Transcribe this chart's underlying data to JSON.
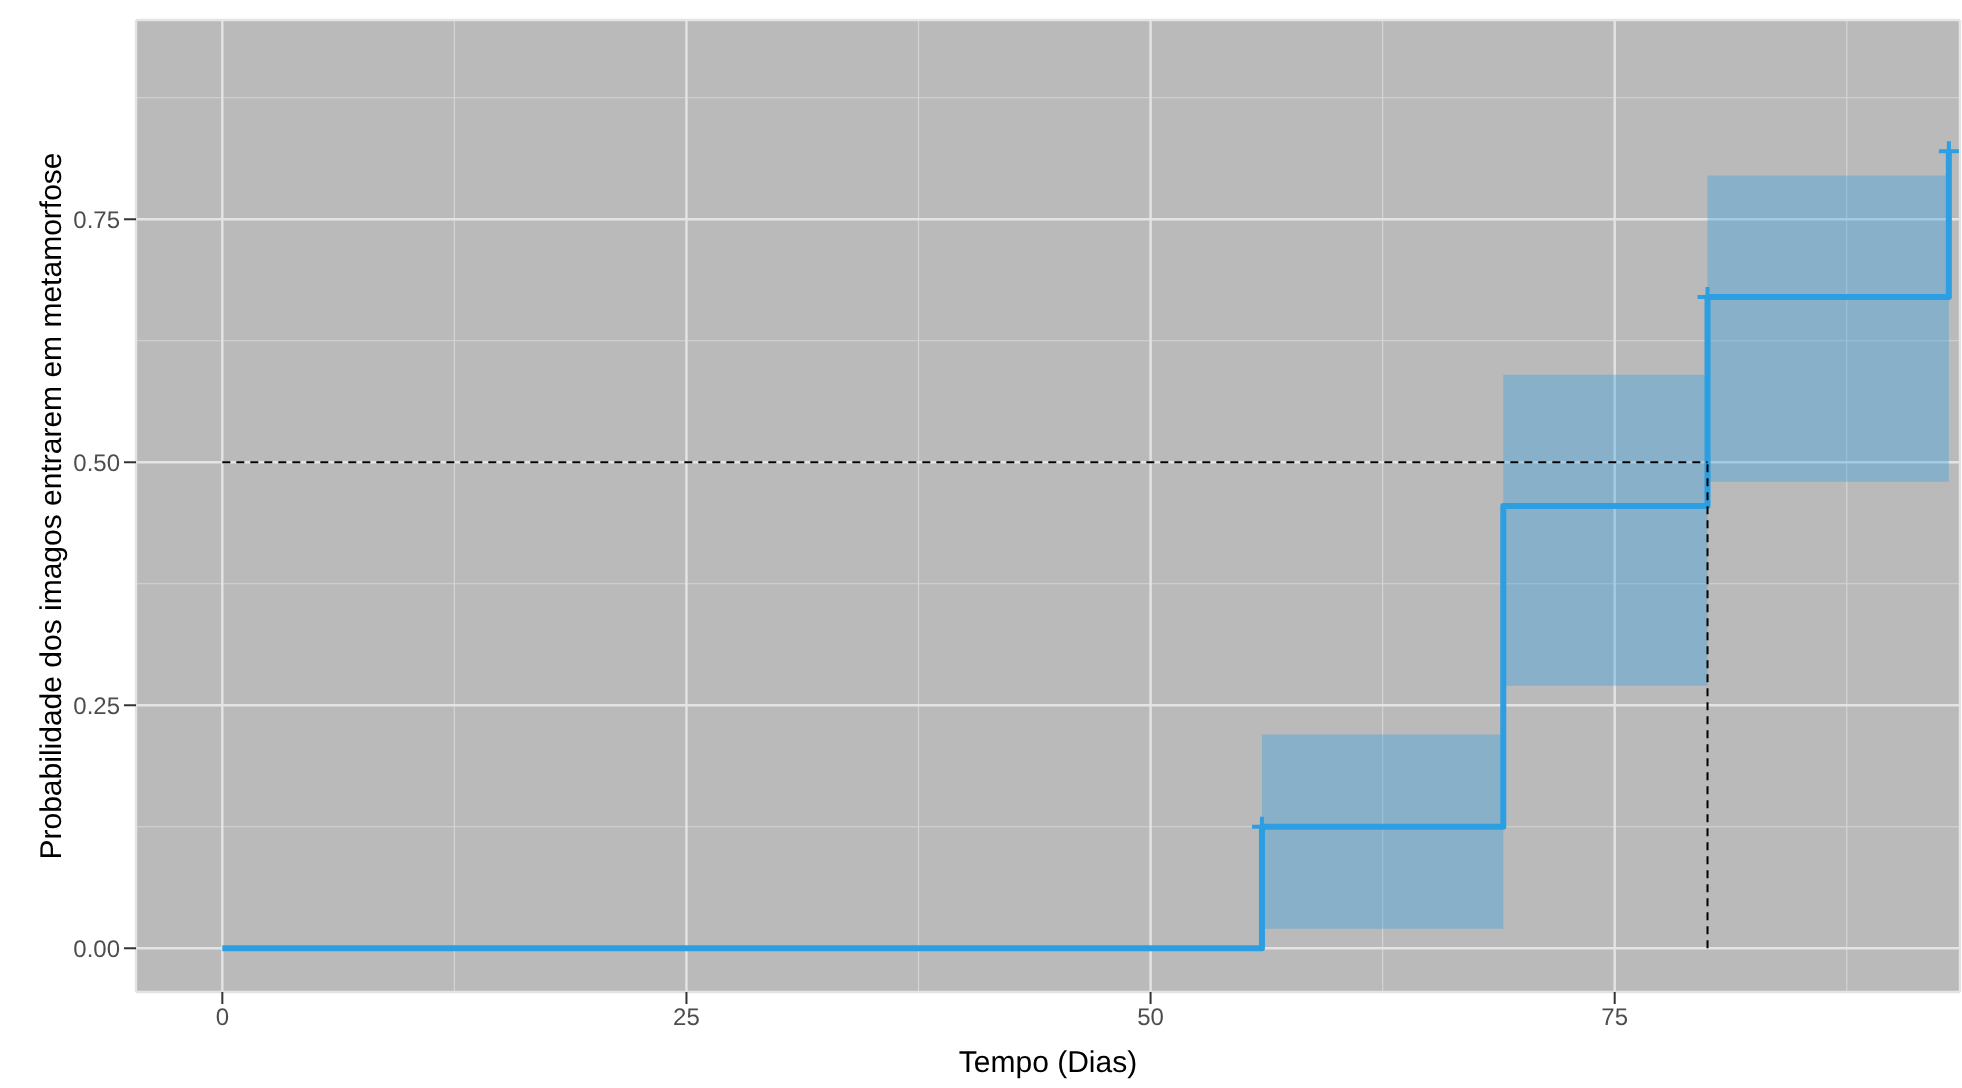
{
  "chart_data": {
    "type": "step",
    "xlabel": "Tempo (Dias)",
    "ylabel": "Probabilidade dos imagos entrarem em metamorfose",
    "xlim": [
      -4.65,
      93.6
    ],
    "ylim": [
      -0.045,
      0.955
    ],
    "xticks": [
      0,
      25,
      50,
      75
    ],
    "yticks": [
      {
        "value": 0,
        "label": "0.00"
      },
      {
        "value": 0.25,
        "label": "0.25"
      },
      {
        "value": 0.5,
        "label": "0.50"
      },
      {
        "value": 0.75,
        "label": "0.75"
      }
    ],
    "grid": true,
    "legend": false,
    "line_style": "solid",
    "series": [
      {
        "color": "#2c9fe3",
        "marker": "none",
        "x": [
          0,
          56,
          69,
          80,
          93
        ],
        "values": [
          0,
          0.125,
          0.455,
          0.67,
          0.82
        ],
        "lower": [
          null,
          0.02,
          0.27,
          0.48,
          0.48
        ],
        "upper": [
          null,
          0.22,
          0.59,
          0.795,
          0.795
        ]
      },
      {
        "type": "scatter",
        "color": "#2c9fe3",
        "marker": "cross",
        "x": [
          56,
          80,
          93
        ],
        "values": [
          0.125,
          0.67,
          0.82
        ]
      }
    ],
    "ref_lines": [
      {
        "axis": "y",
        "value": 0.5,
        "color": "#000000",
        "line_style": "dashed"
      },
      {
        "axis": "x",
        "value": 80,
        "color": "#000000",
        "line_style": "dashed"
      }
    ]
  }
}
